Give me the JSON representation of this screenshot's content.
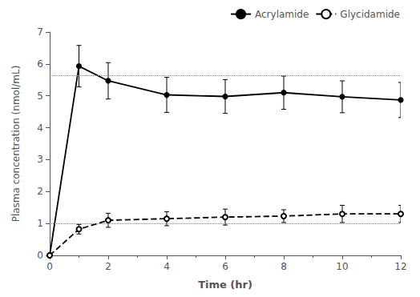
{
  "chart_data": {
    "type": "line",
    "x": [
      0,
      1,
      2,
      4,
      6,
      8,
      10,
      12
    ],
    "series": [
      {
        "name": "Acrylamide",
        "color": "#000000",
        "marker": "circle",
        "line_style": "solid",
        "values": [
          0.0,
          5.93,
          5.47,
          5.03,
          4.98,
          5.1,
          4.97,
          4.87
        ],
        "errors": [
          0.0,
          0.65,
          0.57,
          0.55,
          0.53,
          0.52,
          0.5,
          0.55
        ]
      },
      {
        "name": "Glycidamide",
        "color": "#000000",
        "marker": "open_circle",
        "line_style": "dashed",
        "values": [
          0.0,
          0.82,
          1.1,
          1.15,
          1.2,
          1.23,
          1.3,
          1.3
        ],
        "errors": [
          0.0,
          0.15,
          0.22,
          0.22,
          0.25,
          0.2,
          0.27,
          0.27
        ]
      }
    ],
    "reference_lines": [
      5.63,
      1.0
    ],
    "xlabel": "Time (hr)",
    "ylabel": "Plasma concentration (nmol/mL)",
    "xlim": [
      0,
      12
    ],
    "xticks": [
      0,
      2,
      4,
      6,
      8,
      10,
      12
    ],
    "ylim": [
      0,
      7
    ],
    "yticks": [
      0,
      1,
      2,
      3,
      4,
      5,
      6,
      7
    ],
    "legend": "upper right",
    "grid": false
  }
}
